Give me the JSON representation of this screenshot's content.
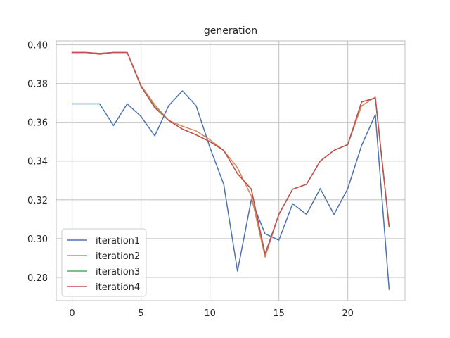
{
  "chart_data": {
    "type": "line",
    "title": "generation",
    "xlabel": "",
    "ylabel": "",
    "xlim": [
      -1.15,
      24.15
    ],
    "ylim": [
      0.268,
      0.402
    ],
    "xticks": [
      0,
      5,
      10,
      15,
      20
    ],
    "yticks": [
      0.28,
      0.3,
      0.32,
      0.34,
      0.36,
      0.38,
      0.4
    ],
    "ytick_labels": [
      "0.28",
      "0.30",
      "0.32",
      "0.34",
      "0.36",
      "0.38",
      "0.40"
    ],
    "grid": true,
    "legend_position": "lower-left",
    "x": [
      0,
      1,
      2,
      3,
      4,
      5,
      6,
      7,
      8,
      9,
      10,
      11,
      12,
      13,
      14,
      15,
      16,
      17,
      18,
      19,
      20,
      21,
      22,
      23
    ],
    "series": [
      {
        "name": "iteration1",
        "color": "#4c72b0",
        "values": [
          0.3695,
          0.3695,
          0.3695,
          0.3583,
          0.3695,
          0.363,
          0.353,
          0.3685,
          0.3762,
          0.3685,
          0.347,
          0.328,
          0.2832,
          0.32,
          0.3025,
          0.2992,
          0.318,
          0.3125,
          0.3258,
          0.3125,
          0.3258,
          0.348,
          0.364,
          0.2738
        ]
      },
      {
        "name": "iteration2",
        "color": "#dd8452",
        "values": [
          0.396,
          0.396,
          0.395,
          0.396,
          0.396,
          0.379,
          0.369,
          0.361,
          0.358,
          0.3555,
          0.351,
          0.3455,
          0.3365,
          0.322,
          0.2905,
          0.3125,
          0.3255,
          0.328,
          0.34,
          0.3455,
          0.3485,
          0.3685,
          0.373,
          0.306
        ]
      },
      {
        "name": "iteration3",
        "color": "#55a868",
        "values": [
          0.396,
          0.396,
          0.3955,
          0.396,
          0.396,
          0.3785,
          0.368,
          0.361,
          0.3565,
          0.3535,
          0.35,
          0.3455,
          0.3335,
          0.3255,
          0.292,
          0.3125,
          0.3255,
          0.328,
          0.34,
          0.3455,
          0.3485,
          0.3705,
          0.3725,
          0.306
        ]
      },
      {
        "name": "iteration4",
        "color": "#c44e52",
        "values": [
          0.396,
          0.396,
          0.3955,
          0.396,
          0.396,
          0.3785,
          0.3675,
          0.361,
          0.3565,
          0.3535,
          0.35,
          0.3455,
          0.3335,
          0.3255,
          0.292,
          0.3125,
          0.3255,
          0.328,
          0.34,
          0.3455,
          0.3485,
          0.3705,
          0.3725,
          0.306
        ]
      }
    ]
  }
}
